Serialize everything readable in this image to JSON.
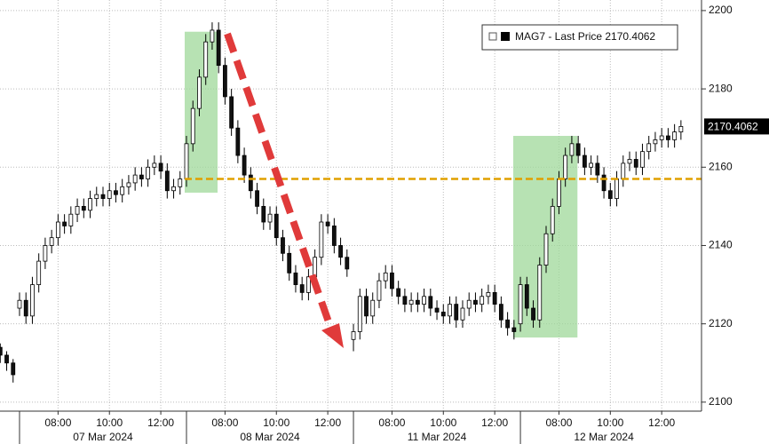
{
  "chart_data": {
    "type": "candlestick",
    "series_name": "MAG7 - Last Price",
    "up_color": "#ffffff",
    "down_color": "#111111",
    "outline_color": "#000000",
    "xlim": [
      -0.76,
      26.55
    ],
    "ylim": [
      2097.7,
      2202.7
    ],
    "yticks": [
      2100,
      2120,
      2140,
      2160,
      2180,
      2200
    ],
    "xticks": [
      {
        "value": 1.5,
        "label": "08:00"
      },
      {
        "value": 3.5,
        "label": "10:00"
      },
      {
        "value": 5.5,
        "label": "12:00"
      },
      {
        "value": 8,
        "label": "08:00"
      },
      {
        "value": 10,
        "label": "10:00"
      },
      {
        "value": 12,
        "label": "12:00"
      },
      {
        "value": 14.5,
        "label": "08:00"
      },
      {
        "value": 16.5,
        "label": "10:00"
      },
      {
        "value": 18.5,
        "label": "12:00"
      },
      {
        "value": 21,
        "label": "08:00"
      },
      {
        "value": 23,
        "label": "10:00"
      },
      {
        "value": 25,
        "label": "12:00"
      }
    ],
    "grid": true,
    "days": [
      {
        "start": 0,
        "end": 6.5,
        "label": "07 Mar 2024"
      },
      {
        "start": 6.5,
        "end": 13,
        "label": "08 Mar 2024"
      },
      {
        "start": 13,
        "end": 19.5,
        "label": "11 Mar 2024"
      },
      {
        "start": 19.5,
        "end": 26,
        "label": "12 Mar 2024"
      }
    ],
    "highlights": [
      {
        "x": [
          6.43,
          7.71
        ],
        "y": [
          2153.5,
          2194.6
        ],
        "color": "#9fd89a"
      },
      {
        "x": [
          19.22,
          21.72
        ],
        "y": [
          2116.5,
          2168
        ],
        "color": "#9fd89a"
      }
    ],
    "reference_line": {
      "value": 2157,
      "color": "#e0a000"
    },
    "x": [
      -0.75,
      -0.5,
      -0.25,
      0,
      0.25,
      0.5,
      0.75,
      1,
      1.25,
      1.5,
      1.75,
      2,
      2.25,
      2.5,
      2.75,
      3,
      3.25,
      3.5,
      3.75,
      4,
      4.25,
      4.5,
      4.75,
      5,
      5.25,
      5.5,
      5.75,
      6,
      6.25,
      6.5,
      6.75,
      7,
      7.25,
      7.5,
      7.75,
      8,
      8.25,
      8.5,
      8.75,
      9,
      9.25,
      9.5,
      9.75,
      10,
      10.25,
      10.5,
      10.75,
      11,
      11.25,
      11.5,
      11.75,
      12,
      12.25,
      12.5,
      12.75,
      13,
      13.25,
      13.5,
      13.75,
      14,
      14.25,
      14.5,
      14.75,
      15,
      15.25,
      15.5,
      15.75,
      16,
      16.25,
      16.5,
      16.75,
      17,
      17.25,
      17.5,
      17.75,
      18,
      18.25,
      18.5,
      18.75,
      19,
      19.25,
      19.5,
      19.75,
      20,
      20.25,
      20.5,
      20.75,
      21,
      21.25,
      21.5,
      21.75,
      22,
      22.25,
      22.5,
      22.75,
      23,
      23.25,
      23.5,
      23.75,
      24,
      24.25,
      24.5,
      24.75,
      25,
      25.25,
      25.5,
      25.75
    ],
    "open": [
      2114,
      2112,
      2110,
      2124,
      2126,
      2122,
      2130,
      2136,
      2140,
      2142,
      2146,
      2145,
      2148,
      2150,
      2149,
      2152,
      2153,
      2152,
      2154,
      2153,
      2155,
      2156,
      2158,
      2157,
      2160,
      2161,
      2159,
      2154,
      2155,
      2157,
      2166,
      2175,
      2183,
      2192,
      2195,
      2186,
      2178,
      2170,
      2163,
      2158,
      2154,
      2150,
      2146,
      2148,
      2142,
      2138,
      2133,
      2130,
      2128,
      2132,
      2137,
      2146,
      2145,
      2140,
      2137,
      2116,
      2118,
      2127,
      2122,
      2126,
      2131,
      2133,
      2129,
      2127,
      2125,
      2126,
      2125,
      2127,
      2124,
      2123,
      2122,
      2125,
      2121,
      2124,
      2126,
      2125,
      2127,
      2128,
      2125,
      2121,
      2119,
      2120,
      2130,
      2124,
      2121,
      2135,
      2143,
      2150,
      2157,
      2163,
      2166,
      2163,
      2160,
      2161,
      2158,
      2154,
      2152,
      2157,
      2161,
      2162,
      2160,
      2164,
      2166,
      2167,
      2168,
      2167,
      2169
    ],
    "high": [
      2115,
      2113,
      2111,
      2128,
      2128,
      2132,
      2138,
      2142,
      2144,
      2148,
      2148,
      2150,
      2152,
      2152,
      2154,
      2155,
      2155,
      2156,
      2156,
      2157,
      2158,
      2160,
      2160,
      2162,
      2163,
      2163,
      2161,
      2157,
      2159,
      2168,
      2177,
      2185,
      2194,
      2197,
      2197,
      2188,
      2180,
      2172,
      2165,
      2160,
      2156,
      2152,
      2150,
      2150,
      2144,
      2140,
      2135,
      2132,
      2134,
      2139,
      2148,
      2148,
      2147,
      2142,
      2139,
      2120,
      2129,
      2129,
      2128,
      2133,
      2135,
      2135,
      2131,
      2129,
      2128,
      2128,
      2129,
      2129,
      2126,
      2125,
      2127,
      2127,
      2126,
      2128,
      2128,
      2129,
      2130,
      2130,
      2127,
      2123,
      2121,
      2132,
      2132,
      2126,
      2137,
      2145,
      2152,
      2159,
      2165,
      2168,
      2168,
      2165,
      2163,
      2163,
      2160,
      2156,
      2159,
      2163,
      2164,
      2164,
      2166,
      2168,
      2169,
      2170,
      2170,
      2171,
      2172
    ],
    "low": [
      2110,
      2108,
      2105,
      2122,
      2120,
      2120,
      2128,
      2134,
      2138,
      2140,
      2143,
      2143,
      2146,
      2147,
      2147,
      2150,
      2150,
      2150,
      2151,
      2151,
      2153,
      2154,
      2155,
      2155,
      2158,
      2157,
      2152,
      2152,
      2153,
      2155,
      2164,
      2173,
      2181,
      2190,
      2184,
      2176,
      2168,
      2161,
      2156,
      2152,
      2148,
      2144,
      2144,
      2140,
      2136,
      2131,
      2128,
      2126,
      2126,
      2130,
      2135,
      2143,
      2138,
      2135,
      2132,
      2113,
      2116,
      2120,
      2120,
      2124,
      2129,
      2127,
      2125,
      2123,
      2123,
      2123,
      2123,
      2122,
      2121,
      2120,
      2120,
      2119,
      2119,
      2122,
      2123,
      2123,
      2125,
      2123,
      2119,
      2117,
      2116,
      2118,
      2122,
      2119,
      2119,
      2133,
      2141,
      2148,
      2155,
      2161,
      2161,
      2158,
      2158,
      2156,
      2152,
      2150,
      2150,
      2155,
      2159,
      2158,
      2158,
      2162,
      2164,
      2165,
      2165,
      2165,
      2167
    ],
    "close": [
      2112,
      2110,
      2107,
      2126,
      2122,
      2130,
      2136,
      2140,
      2142,
      2146,
      2145,
      2148,
      2150,
      2149,
      2152,
      2153,
      2152,
      2154,
      2153,
      2155,
      2156,
      2158,
      2157,
      2160,
      2161,
      2159,
      2154,
      2155,
      2157,
      2166,
      2175,
      2183,
      2192,
      2195,
      2186,
      2178,
      2170,
      2163,
      2158,
      2154,
      2150,
      2146,
      2148,
      2142,
      2138,
      2133,
      2130,
      2128,
      2132,
      2137,
      2146,
      2145,
      2140,
      2137,
      2134,
      2118,
      2127,
      2122,
      2126,
      2131,
      2133,
      2129,
      2127,
      2125,
      2126,
      2125,
      2127,
      2124,
      2123,
      2122,
      2125,
      2121,
      2124,
      2126,
      2125,
      2127,
      2128,
      2125,
      2121,
      2119,
      2118,
      2130,
      2124,
      2121,
      2135,
      2143,
      2150,
      2157,
      2163,
      2166,
      2163,
      2160,
      2161,
      2158,
      2154,
      2152,
      2157,
      2161,
      2162,
      2160,
      2164,
      2166,
      2167,
      2168,
      2167,
      2169,
      2170.4062
    ]
  }
}
